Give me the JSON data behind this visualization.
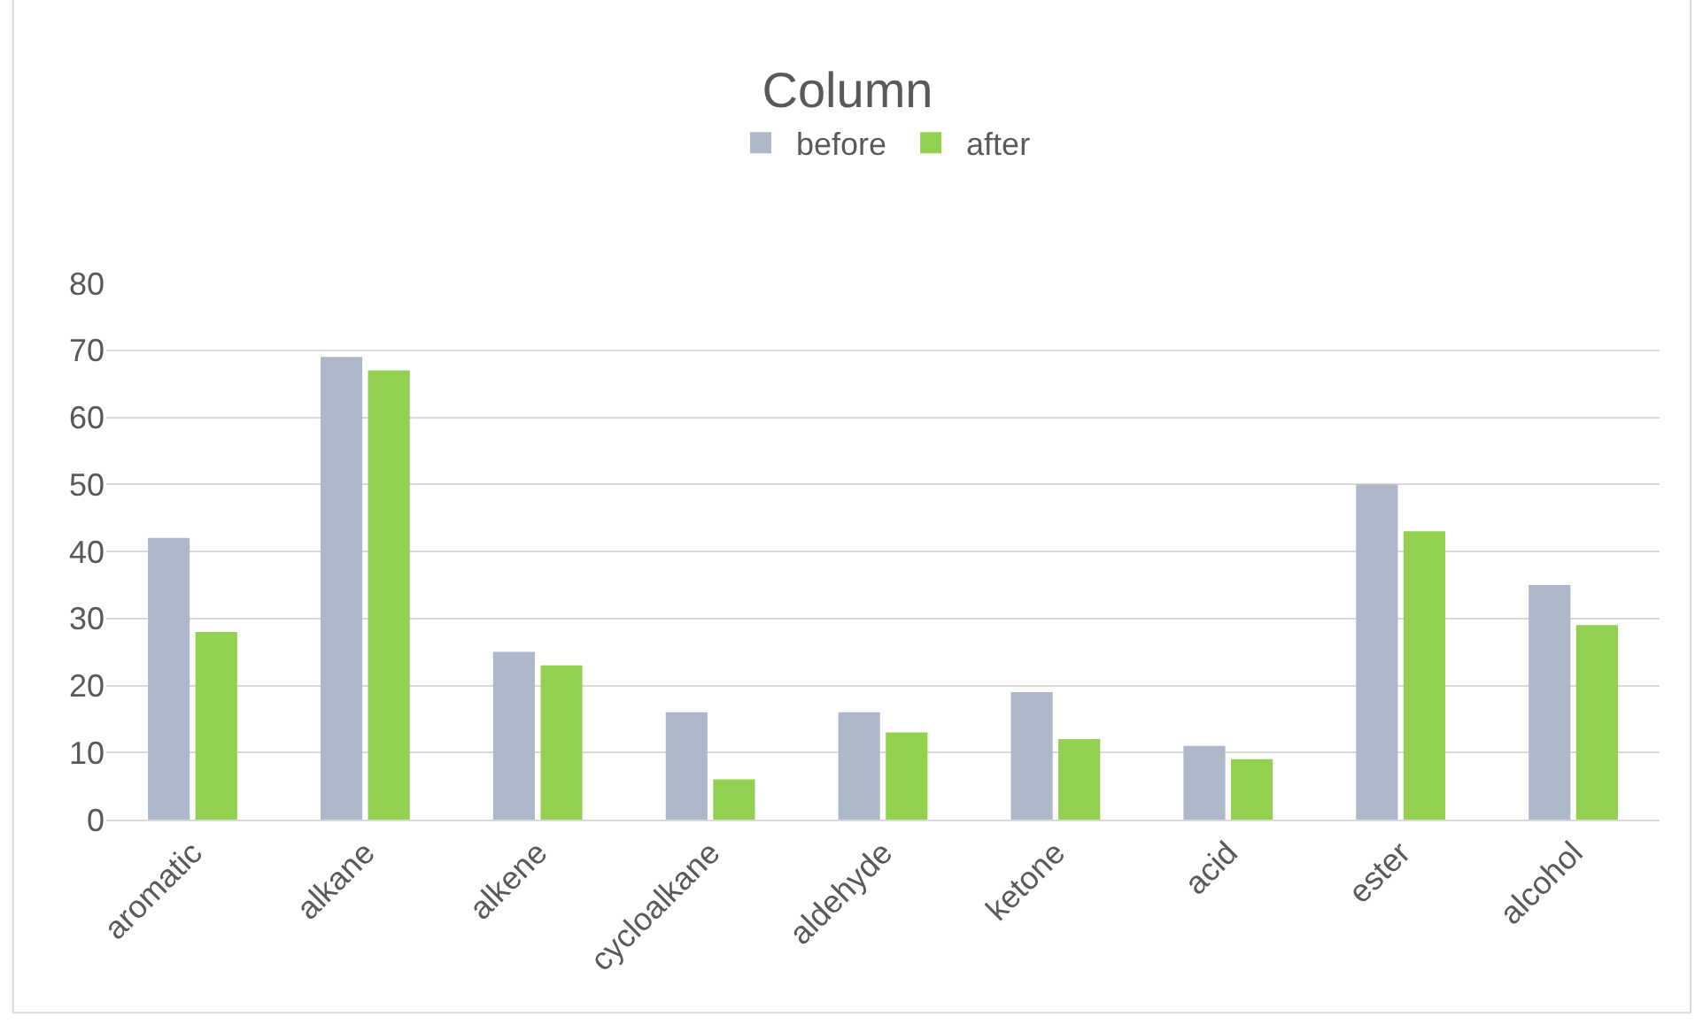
{
  "chart_data": {
    "type": "bar",
    "title": "Column",
    "categories": [
      "aromatic",
      "alkane",
      "alkene",
      "cycloalkane",
      "aldehyde",
      "ketone",
      "acid",
      "ester",
      "alcohol"
    ],
    "series": [
      {
        "name": "before",
        "color": "#adb9ca",
        "values": [
          42,
          69,
          25,
          16,
          16,
          19,
          11,
          50,
          35
        ]
      },
      {
        "name": "after",
        "color": "#92d050",
        "values": [
          28,
          67,
          23,
          6,
          13,
          12,
          9,
          43,
          29
        ]
      }
    ],
    "ylim": [
      0,
      80
    ],
    "yticks": [
      0,
      10,
      20,
      30,
      40,
      50,
      60,
      70,
      80
    ],
    "grid": "y",
    "legend": "top"
  }
}
